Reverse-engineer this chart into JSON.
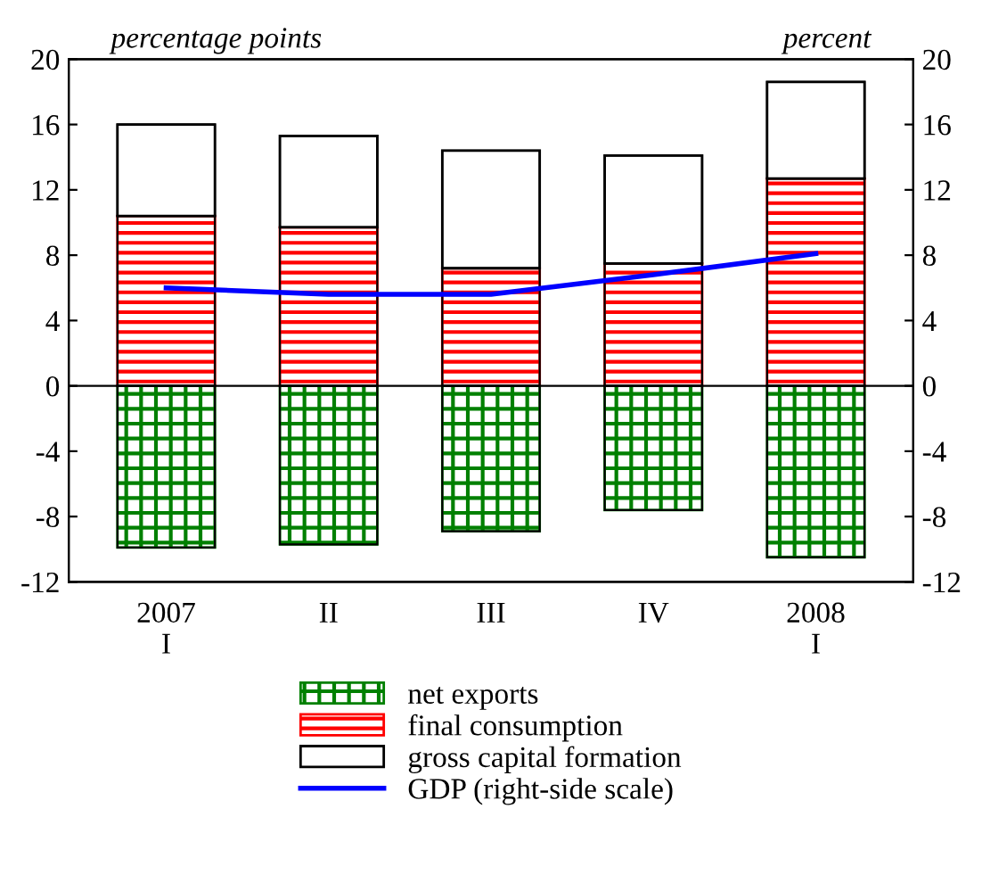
{
  "chart_data": {
    "type": "bar",
    "stacked": true,
    "ylabel": "percentage points",
    "y2label": "percent",
    "categories": [
      "2007\nI",
      "II",
      "III",
      "IV",
      "2008\nI"
    ],
    "series": [
      {
        "name": "net exports",
        "color": "#008000",
        "values": [
          -9.9,
          -9.7,
          -8.9,
          -7.6,
          -10.5
        ]
      },
      {
        "name": "final consumption",
        "color": "#ff0000",
        "values": [
          10.4,
          9.7,
          7.2,
          7.5,
          12.7
        ]
      },
      {
        "name": "gross capital formation",
        "color": "#000000",
        "values": [
          5.6,
          5.6,
          7.2,
          6.6,
          5.9
        ]
      },
      {
        "name": "GDP (right-side scale)",
        "type": "line",
        "axis": "y2",
        "color": "#0000ff",
        "values": [
          6.0,
          5.6,
          5.6,
          6.8,
          8.1
        ]
      }
    ],
    "ylim": [
      -12,
      20
    ],
    "yticks": [
      -12,
      -8,
      -4,
      0,
      4,
      8,
      12,
      16,
      20
    ],
    "y2lim": [
      -12,
      20
    ],
    "y2ticks": [
      -12,
      -8,
      -4,
      0,
      4,
      8,
      12,
      16,
      20
    ],
    "ref_lines": [
      {
        "axis": "y",
        "value": 0,
        "color": "#000000"
      }
    ],
    "grid": false,
    "legend": "bottom",
    "marker": "none",
    "line_style": "solid"
  }
}
